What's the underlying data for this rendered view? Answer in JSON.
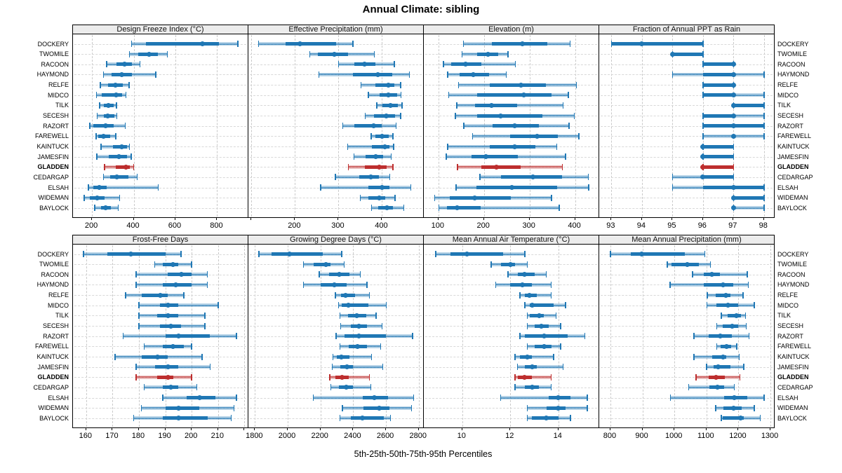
{
  "title": "Annual Climate: sibling",
  "x_axis_caption": "5th-25th-50th-75th-95th Percentiles",
  "colors": {
    "series": "#1f77b4",
    "series_band": "rgba(31,119,180,0.32)",
    "highlight": "#bd2e2e",
    "highlight_band": "rgba(189,46,46,0.32)",
    "grid": "#c9c9c9",
    "header_bg": "#ececec",
    "border": "#000000"
  },
  "chart_data": {
    "type": "dotplot-trellis",
    "percentile_levels": [
      "5th",
      "25th",
      "50th",
      "75th",
      "95th"
    ],
    "sites": [
      "DOCKERY",
      "TWOMILE",
      "RACOON",
      "HAYMOND",
      "RELFE",
      "MIDCO",
      "TILK",
      "SECESH",
      "RAZORT",
      "FAREWELL",
      "KAINTUCK",
      "JAMESFIN",
      "GLADDEN",
      "CEDARGAP",
      "ELSAH",
      "WIDEMAN",
      "BAYLOCK"
    ],
    "highlight_site": "GLADDEN",
    "legend_position": "none",
    "grid_on": true,
    "panels": [
      {
        "title": "Design Freeze Index (°C)",
        "row": 0,
        "domain": [
          109,
          950
        ],
        "ticks": [
          200,
          400,
          600,
          800
        ],
        "hidden_tick_labels": [],
        "values": [
          [
            390,
            460,
            730,
            810,
            900
          ],
          [
            380,
            422,
            473,
            515,
            562
          ],
          [
            270,
            318,
            355,
            391,
            430
          ],
          [
            255,
            295,
            344,
            393,
            506
          ],
          [
            240,
            277,
            312,
            348,
            378
          ],
          [
            222,
            248,
            315,
            344,
            363
          ],
          [
            236,
            256,
            279,
            304,
            318
          ],
          [
            225,
            256,
            277,
            307,
            319
          ],
          [
            189,
            206,
            267,
            303,
            360
          ],
          [
            220,
            231,
            256,
            288,
            315
          ],
          [
            243,
            301,
            344,
            369,
            380
          ],
          [
            223,
            281,
            329,
            369,
            389
          ],
          [
            260,
            315,
            363,
            382,
            400
          ],
          [
            256,
            288,
            319,
            374,
            416
          ],
          [
            183,
            206,
            234,
            270,
            517
          ],
          [
            163,
            191,
            225,
            262,
            333
          ],
          [
            214,
            243,
            265,
            292,
            326
          ]
        ]
      },
      {
        "title": "Effective Precipitation (mm)",
        "row": 0,
        "domain": [
          93,
          496
        ],
        "ticks": [
          100,
          200,
          300,
          400
        ],
        "hidden_tick_labels": [
          100
        ],
        "values": [
          [
            116,
            178,
            211,
            294,
            333
          ],
          [
            234,
            253,
            290,
            322,
            382
          ],
          [
            300,
            337,
            360,
            385,
            428
          ],
          [
            255,
            333,
            390,
            423,
            463
          ],
          [
            352,
            384,
            414,
            428,
            443
          ],
          [
            369,
            394,
            414,
            434,
            444
          ],
          [
            388,
            401,
            420,
            437,
            446
          ],
          [
            361,
            382,
            410,
            430,
            443
          ],
          [
            310,
            337,
            380,
            400,
            432
          ],
          [
            375,
            385,
            400,
            416,
            425
          ],
          [
            321,
            376,
            406,
            417,
            427
          ],
          [
            336,
            362,
            385,
            402,
            421
          ],
          [
            323,
            360,
            393,
            410,
            425
          ],
          [
            293,
            348,
            375,
            393,
            418
          ],
          [
            259,
            369,
            400,
            417,
            466
          ],
          [
            350,
            369,
            393,
            407,
            430
          ],
          [
            376,
            391,
            412,
            425,
            450
          ]
        ]
      },
      {
        "title": "Elevation (m)",
        "row": 0,
        "domain": [
          68,
          453
        ],
        "ticks": [
          100,
          200,
          300,
          400
        ],
        "hidden_tick_labels": [],
        "values": [
          [
            155,
            217,
            284,
            339,
            389
          ],
          [
            152,
            185,
            209,
            231,
            253
          ],
          [
            111,
            128,
            159,
            195,
            269
          ],
          [
            120,
            146,
            177,
            211,
            249
          ],
          [
            144,
            213,
            281,
            336,
            403
          ],
          [
            123,
            185,
            288,
            348,
            385
          ],
          [
            140,
            180,
            217,
            273,
            374
          ],
          [
            137,
            185,
            236,
            329,
            398
          ],
          [
            156,
            219,
            267,
            320,
            387
          ],
          [
            175,
            257,
            316,
            362,
            408
          ],
          [
            120,
            212,
            267,
            313,
            360
          ],
          [
            117,
            173,
            205,
            274,
            379
          ],
          [
            142,
            194,
            228,
            281,
            372
          ],
          [
            191,
            238,
            308,
            371,
            429
          ],
          [
            139,
            183,
            262,
            360,
            430
          ],
          [
            92,
            125,
            180,
            259,
            348
          ],
          [
            101,
            119,
            141,
            192,
            365
          ]
        ]
      },
      {
        "title": "Fraction of Annual PPT as Rain",
        "row": 0,
        "domain": [
          92.6,
          98.35
        ],
        "ticks": [
          93,
          94,
          95,
          96,
          97,
          98
        ],
        "hidden_tick_labels": [],
        "values": [
          [
            93,
            93,
            94,
            96,
            96
          ],
          [
            95,
            95,
            95,
            96,
            96
          ],
          [
            96,
            96,
            97,
            97,
            97
          ],
          [
            95,
            96,
            97,
            97,
            98
          ],
          [
            96,
            96,
            97,
            97,
            97
          ],
          [
            96,
            96,
            97,
            97,
            98
          ],
          [
            97,
            97,
            97,
            98,
            98
          ],
          [
            96,
            96,
            97,
            97,
            98
          ],
          [
            96,
            96,
            97,
            98,
            98
          ],
          [
            96,
            97,
            97,
            97,
            98
          ],
          [
            96,
            96,
            96,
            97,
            97
          ],
          [
            96,
            96,
            96,
            97,
            97
          ],
          [
            96,
            96,
            96,
            97,
            97
          ],
          [
            95,
            96,
            96,
            97,
            97
          ],
          [
            95,
            96,
            97,
            98,
            98
          ],
          [
            97,
            97,
            97,
            98,
            98
          ],
          [
            97,
            97,
            97,
            97,
            98
          ]
        ]
      },
      {
        "title": "Frost-Free Days",
        "row": 1,
        "domain": [
          155,
          221.5
        ],
        "ticks": [
          160,
          170,
          180,
          190,
          200,
          210,
          220
        ],
        "hidden_tick_labels": [
          220
        ],
        "values": [
          [
            159,
            168,
            177,
            190,
            196
          ],
          [
            186,
            189,
            193,
            195,
            200
          ],
          [
            179,
            191,
            196,
            200,
            206
          ],
          [
            179,
            189,
            194,
            200,
            206
          ],
          [
            175,
            181,
            188,
            191,
            197
          ],
          [
            180,
            188,
            191,
            195,
            210
          ],
          [
            180,
            187,
            191,
            195,
            205
          ],
          [
            180,
            188,
            192,
            196,
            205
          ],
          [
            174,
            190,
            195,
            207,
            217
          ],
          [
            182,
            189,
            193,
            197,
            200
          ],
          [
            171,
            181,
            187,
            191,
            204
          ],
          [
            179,
            186,
            191,
            195,
            207
          ],
          [
            179,
            187,
            191,
            193,
            200
          ],
          [
            182,
            189,
            192,
            195,
            202
          ],
          [
            189,
            198,
            203,
            209,
            217
          ],
          [
            181,
            190,
            195,
            203,
            216
          ],
          [
            178,
            189,
            195,
            206,
            215
          ]
        ]
      },
      {
        "title": "Growing Degree Days (°C)",
        "row": 1,
        "domain": [
          1760,
          2831
        ],
        "ticks": [
          1800,
          2000,
          2200,
          2400,
          2600,
          2800
        ],
        "hidden_tick_labels": [],
        "values": [
          [
            1824,
            1900,
            2010,
            2214,
            2329
          ],
          [
            2096,
            2157,
            2234,
            2263,
            2344
          ],
          [
            2192,
            2253,
            2314,
            2377,
            2443
          ],
          [
            2096,
            2200,
            2286,
            2361,
            2485
          ],
          [
            2291,
            2324,
            2353,
            2410,
            2500
          ],
          [
            2310,
            2329,
            2372,
            2492,
            2601
          ],
          [
            2320,
            2367,
            2420,
            2481,
            2539
          ],
          [
            2324,
            2386,
            2434,
            2486,
            2577
          ],
          [
            2296,
            2348,
            2434,
            2600,
            2763
          ],
          [
            2320,
            2372,
            2428,
            2486,
            2567
          ],
          [
            2277,
            2300,
            2329,
            2377,
            2511
          ],
          [
            2271,
            2320,
            2363,
            2400,
            2581
          ],
          [
            2257,
            2291,
            2331,
            2372,
            2500
          ],
          [
            2263,
            2314,
            2357,
            2400,
            2507
          ],
          [
            2157,
            2457,
            2528,
            2614,
            2768
          ],
          [
            2334,
            2463,
            2557,
            2620,
            2757
          ],
          [
            2320,
            2386,
            2457,
            2586,
            2628
          ]
        ]
      },
      {
        "title": "Mean Annual Air Temperature (°C)",
        "row": 1,
        "domain": [
          8.4,
          15.7
        ],
        "ticks": [
          10,
          12,
          14
        ],
        "hidden_tick_labels": [],
        "values": [
          [
            8.9,
            9.5,
            10.2,
            11.7,
            12.6
          ],
          [
            11.2,
            11.6,
            12.0,
            12.2,
            12.7
          ],
          [
            11.9,
            12.3,
            12.6,
            13.0,
            13.5
          ],
          [
            11.4,
            12.0,
            12.5,
            12.9,
            13.7
          ],
          [
            12.4,
            12.6,
            12.8,
            13.1,
            13.7
          ],
          [
            12.6,
            12.8,
            12.9,
            13.8,
            14.3
          ],
          [
            12.7,
            12.8,
            13.2,
            13.4,
            13.9
          ],
          [
            12.7,
            13.0,
            13.3,
            13.6,
            14.1
          ],
          [
            12.4,
            12.6,
            13.4,
            14.4,
            15.1
          ],
          [
            12.7,
            13.0,
            13.4,
            13.7,
            14.1
          ],
          [
            12.2,
            12.4,
            12.7,
            12.9,
            13.8
          ],
          [
            12.3,
            12.6,
            12.9,
            13.1,
            14.2
          ],
          [
            12.2,
            12.3,
            12.6,
            12.9,
            13.7
          ],
          [
            12.2,
            12.6,
            12.9,
            13.2,
            13.7
          ],
          [
            11.6,
            13.6,
            14.0,
            14.5,
            15.2
          ],
          [
            12.7,
            13.5,
            14.0,
            14.3,
            15.2
          ],
          [
            12.7,
            12.9,
            13.5,
            14.0,
            14.5
          ]
        ]
      },
      {
        "title": "Mean Annual Precipitation (mm)",
        "row": 1,
        "domain": [
          765,
          1313
        ],
        "ticks": [
          800,
          900,
          1000,
          1100,
          1200,
          1300
        ],
        "hidden_tick_labels": [],
        "values": [
          [
            800,
            864,
            897,
            1032,
            1095
          ],
          [
            978,
            991,
            1041,
            1076,
            1112
          ],
          [
            1056,
            1092,
            1117,
            1141,
            1227
          ],
          [
            986,
            1092,
            1151,
            1183,
            1231
          ],
          [
            1103,
            1129,
            1160,
            1176,
            1214
          ],
          [
            1101,
            1132,
            1168,
            1200,
            1249
          ],
          [
            1146,
            1166,
            1193,
            1207,
            1222
          ],
          [
            1132,
            1151,
            1180,
            1198,
            1224
          ],
          [
            1061,
            1107,
            1144,
            1180,
            1233
          ],
          [
            1132,
            1144,
            1163,
            1178,
            1195
          ],
          [
            1061,
            1117,
            1151,
            1161,
            1202
          ],
          [
            1100,
            1122,
            1136,
            1176,
            1217
          ],
          [
            1068,
            1107,
            1129,
            1158,
            1205
          ],
          [
            1044,
            1110,
            1134,
            1156,
            1187
          ],
          [
            988,
            1156,
            1187,
            1227,
            1280
          ],
          [
            1129,
            1154,
            1185,
            1209,
            1249
          ],
          [
            1146,
            1151,
            1207,
            1217,
            1268
          ]
        ]
      }
    ]
  }
}
